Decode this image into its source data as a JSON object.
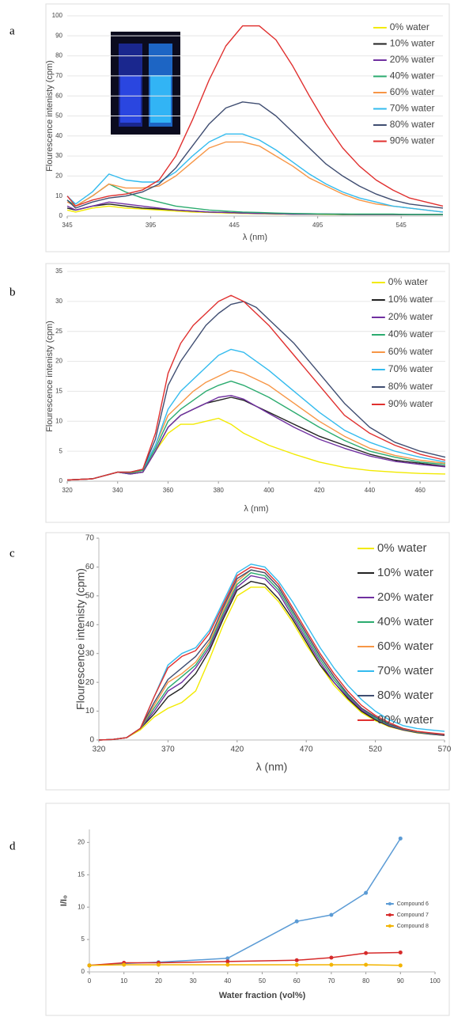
{
  "chart_data": [
    {
      "type": "line",
      "panel_label": "a",
      "xlabel": "λ (nm)",
      "ylabel": "Flourescence intenisty (cpm)",
      "xlim": [
        345,
        570
      ],
      "xticks": [
        345,
        395,
        445,
        495,
        545
      ],
      "ylim": [
        0,
        100
      ],
      "yticks": [
        0,
        10,
        20,
        30,
        40,
        50,
        60,
        70,
        80,
        90,
        100
      ],
      "grid": true,
      "legend": "right",
      "x": [
        345,
        350,
        360,
        370,
        380,
        390,
        400,
        410,
        420,
        430,
        440,
        450,
        460,
        470,
        480,
        490,
        500,
        510,
        520,
        530,
        540,
        550,
        560,
        570
      ],
      "series": [
        {
          "name": "0% water",
          "color": "#f2ea00",
          "values": [
            3,
            2,
            4,
            5,
            4,
            3.5,
            3,
            2.5,
            2,
            1.8,
            1.5,
            1.3,
            1.2,
            1,
            1,
            0.9,
            0.8,
            0.8,
            0.7,
            0.7,
            0.7,
            0.7,
            0.7,
            0.7
          ]
        },
        {
          "name": "10% water",
          "color": "#222222",
          "values": [
            4,
            3,
            5,
            6,
            5,
            4,
            3.5,
            3,
            2.5,
            2,
            1.8,
            1.5,
            1.3,
            1.2,
            1,
            1,
            1,
            0.8,
            0.8,
            0.8,
            0.8,
            0.7,
            0.7,
            0.7
          ]
        },
        {
          "name": "20% water",
          "color": "#7030a0",
          "values": [
            5,
            3,
            5,
            7,
            6,
            5,
            4,
            3,
            2.5,
            2,
            1.8,
            1.5,
            1.3,
            1.2,
            1,
            1,
            1,
            1,
            0.8,
            0.8,
            0.8,
            0.8,
            0.8,
            0.8
          ]
        },
        {
          "name": "40% water",
          "color": "#2bab6f",
          "values": [
            8,
            5,
            10,
            16,
            12,
            9,
            7,
            5,
            4,
            3,
            2.5,
            2,
            1.8,
            1.5,
            1.3,
            1.2,
            1,
            1,
            1,
            1,
            1,
            0.8,
            0.8,
            0.8
          ]
        },
        {
          "name": "60% water",
          "color": "#f79646",
          "values": [
            7,
            5,
            10,
            16,
            14,
            14,
            15,
            20,
            27,
            34,
            37,
            37,
            35,
            30,
            25,
            19,
            15,
            11,
            8,
            6,
            5,
            4,
            3,
            2
          ]
        },
        {
          "name": "70% water",
          "color": "#33bbee",
          "values": [
            10,
            6,
            12,
            21,
            18,
            17,
            17,
            22,
            30,
            37,
            41,
            41,
            38,
            33,
            27,
            21,
            16,
            12,
            9,
            7,
            5,
            4,
            3,
            2
          ]
        },
        {
          "name": "80% water",
          "color": "#3f4d71",
          "values": [
            8,
            4,
            7,
            9,
            10,
            12,
            16,
            24,
            35,
            46,
            54,
            57,
            56,
            50,
            42,
            34,
            26,
            20,
            15,
            11,
            8,
            6,
            5,
            4
          ]
        },
        {
          "name": "90% water",
          "color": "#e0302f",
          "values": [
            10,
            5,
            8,
            10,
            11,
            13,
            18,
            30,
            48,
            68,
            85,
            95,
            95,
            88,
            75,
            60,
            46,
            34,
            25,
            18,
            13,
            9,
            7,
            5
          ]
        }
      ]
    },
    {
      "type": "line",
      "panel_label": "b",
      "xlabel": "λ (nm)",
      "ylabel": "Flourescence intenisty (cpm)",
      "xlim": [
        320,
        470
      ],
      "xticks": [
        320,
        340,
        360,
        380,
        400,
        420,
        440,
        460
      ],
      "ylim": [
        0,
        35
      ],
      "yticks": [
        0,
        5,
        10,
        15,
        20,
        25,
        30,
        35
      ],
      "grid": true,
      "legend": "right",
      "x": [
        320,
        330,
        340,
        345,
        350,
        355,
        360,
        365,
        370,
        375,
        380,
        385,
        390,
        395,
        400,
        410,
        420,
        430,
        440,
        450,
        460,
        470
      ],
      "series": [
        {
          "name": "0% water",
          "color": "#f2ea00",
          "values": [
            0.2,
            0.4,
            1.5,
            1.3,
            1.5,
            5,
            8,
            9.5,
            9.5,
            10,
            10.5,
            9.5,
            8,
            7,
            6,
            4.5,
            3.2,
            2.3,
            1.8,
            1.5,
            1.3,
            1.2
          ]
        },
        {
          "name": "10% water",
          "color": "#222222",
          "values": [
            0.2,
            0.4,
            1.5,
            1.2,
            1.5,
            5,
            9,
            11,
            12,
            13,
            13.5,
            14,
            13.5,
            12.5,
            11.5,
            9.5,
            7.5,
            6,
            4.5,
            3.5,
            3,
            2.5
          ]
        },
        {
          "name": "20% water",
          "color": "#7030a0",
          "values": [
            0.2,
            0.4,
            1.5,
            1.2,
            1.5,
            5,
            9,
            11,
            12,
            13,
            14,
            14.3,
            13.7,
            12.5,
            11.3,
            9,
            7,
            5.5,
            4.2,
            3.3,
            2.8,
            2.4
          ]
        },
        {
          "name": "40% water",
          "color": "#2bab6f",
          "values": [
            0.2,
            0.4,
            1.5,
            1.4,
            1.8,
            5.5,
            10,
            12,
            13.5,
            15,
            16,
            16.7,
            16,
            15,
            14,
            11.5,
            9,
            6.8,
            5,
            4,
            3.2,
            2.8
          ]
        },
        {
          "name": "60% water",
          "color": "#f79646",
          "values": [
            0.2,
            0.4,
            1.5,
            1.5,
            2,
            6,
            11,
            13,
            15,
            16.5,
            17.5,
            18.5,
            18,
            17,
            16,
            13,
            10,
            7.5,
            5.5,
            4.3,
            3.5,
            3
          ]
        },
        {
          "name": "70% water",
          "color": "#33bbee",
          "values": [
            0.2,
            0.4,
            1.5,
            1.5,
            2,
            6,
            12,
            15,
            17,
            19,
            21,
            22,
            21.5,
            20,
            18.5,
            15,
            11.5,
            8.5,
            6.5,
            5,
            4,
            3.2
          ]
        },
        {
          "name": "80% water",
          "color": "#3f4d71",
          "values": [
            0.2,
            0.4,
            1.5,
            1.5,
            2,
            7,
            16,
            20,
            23,
            26,
            28,
            29.5,
            30,
            29,
            27,
            23,
            18,
            13,
            9,
            6.5,
            5,
            4
          ]
        },
        {
          "name": "90% water",
          "color": "#e0302f",
          "values": [
            0.2,
            0.4,
            1.5,
            1.5,
            2,
            8,
            18,
            23,
            26,
            28,
            30,
            31,
            30,
            28,
            26,
            21,
            16,
            11,
            8,
            6,
            4.5,
            3.5
          ]
        }
      ]
    },
    {
      "type": "line",
      "panel_label": "c",
      "xlabel": "λ (nm)",
      "ylabel": "Flourescence intenisty (cpm)",
      "xlim": [
        320,
        570
      ],
      "xticks": [
        320,
        370,
        420,
        470,
        520,
        570
      ],
      "ylim": [
        0,
        70
      ],
      "yticks": [
        0,
        10,
        20,
        30,
        40,
        50,
        60,
        70
      ],
      "grid": false,
      "legend": "right",
      "x": [
        320,
        330,
        340,
        350,
        360,
        370,
        380,
        390,
        400,
        410,
        420,
        430,
        440,
        450,
        460,
        470,
        480,
        490,
        500,
        510,
        520,
        530,
        540,
        550,
        560,
        570
      ],
      "series": [
        {
          "name": "0% water",
          "color": "#f2ea00",
          "values": [
            0,
            0.2,
            0.8,
            3.5,
            8,
            11,
            13,
            17,
            28,
            40,
            50,
            53,
            53,
            48,
            41,
            33,
            26,
            19,
            14,
            9.5,
            6.7,
            4.6,
            3.4,
            2.5,
            2,
            1.6
          ]
        },
        {
          "name": "10% water",
          "color": "#222222",
          "values": [
            0,
            0.2,
            0.8,
            4,
            9,
            15,
            18,
            23,
            31,
            42,
            52,
            55,
            54,
            49,
            42,
            34,
            26,
            20,
            14.5,
            10,
            7,
            4.8,
            3.5,
            2.6,
            2,
            1.6
          ]
        },
        {
          "name": "20% water",
          "color": "#7030a0",
          "values": [
            0,
            0.2,
            0.8,
            4,
            10,
            17,
            20,
            25,
            32,
            43,
            53,
            57,
            56,
            51,
            43,
            35,
            27,
            20,
            15,
            10.5,
            7.3,
            5,
            3.6,
            2.7,
            2.1,
            1.7
          ]
        },
        {
          "name": "40% water",
          "color": "#2bab6f",
          "values": [
            0,
            0.2,
            0.8,
            4,
            11,
            18,
            22,
            26,
            33,
            44,
            54,
            58,
            57,
            52,
            44,
            36,
            28,
            21,
            15.5,
            11,
            7.5,
            5.3,
            3.8,
            2.8,
            2.2,
            1.8
          ]
        },
        {
          "name": "60% water",
          "color": "#f79646",
          "values": [
            0,
            0.2,
            0.8,
            4,
            12,
            20,
            23,
            27,
            34,
            45,
            55,
            59,
            58,
            53,
            45,
            37,
            29,
            22,
            16,
            11,
            8,
            5.5,
            4,
            3,
            2.3,
            1.8
          ]
        },
        {
          "name": "70% water",
          "color": "#33bbee",
          "values": [
            0,
            0.2,
            0.8,
            4,
            15,
            26,
            30,
            32,
            38,
            48,
            58,
            61,
            60,
            55,
            48,
            40,
            32,
            25,
            19,
            14,
            10,
            7,
            5,
            4,
            3.5,
            3
          ]
        },
        {
          "name": "80% water",
          "color": "#3f4d71",
          "values": [
            0,
            0.2,
            0.8,
            4,
            13,
            21,
            25,
            29,
            35,
            46,
            56,
            59,
            58,
            53,
            45,
            37,
            29,
            22,
            16,
            11,
            8,
            5.5,
            4,
            3,
            2.3,
            1.8
          ]
        },
        {
          "name": "90% water",
          "color": "#e0302f",
          "values": [
            0,
            0.2,
            0.8,
            4,
            15,
            25,
            29,
            31,
            37,
            47,
            57,
            60,
            59,
            54,
            46,
            38,
            30,
            23,
            17,
            12,
            8.5,
            6,
            4,
            3,
            2.5,
            2
          ]
        }
      ]
    },
    {
      "type": "line",
      "panel_label": "d",
      "xlabel": "Water fraction (vol%)",
      "ylabel": "I/I₀",
      "xlim": [
        0,
        100
      ],
      "xticks": [
        0,
        10,
        20,
        30,
        40,
        50,
        60,
        70,
        80,
        90,
        100
      ],
      "ylim": [
        0,
        22
      ],
      "yticks": [
        0,
        5,
        10,
        15,
        20
      ],
      "grid": false,
      "legend": "right",
      "markers": true,
      "x": [
        0,
        10,
        20,
        40,
        60,
        70,
        80,
        90
      ],
      "series": [
        {
          "name": "Compound 6",
          "color": "#5b9bd5",
          "values": [
            1,
            1.3,
            1.5,
            2.1,
            7.8,
            8.8,
            12.2,
            20.6
          ]
        },
        {
          "name": "Compound 7",
          "color": "#d62a2a",
          "values": [
            1,
            1.4,
            1.4,
            1.6,
            1.8,
            2.2,
            2.9,
            3.0
          ]
        },
        {
          "name": "Compound 8",
          "color": "#f2b400",
          "values": [
            1,
            1.1,
            1.1,
            1.1,
            1.1,
            1.1,
            1.1,
            1.0
          ]
        }
      ]
    }
  ]
}
